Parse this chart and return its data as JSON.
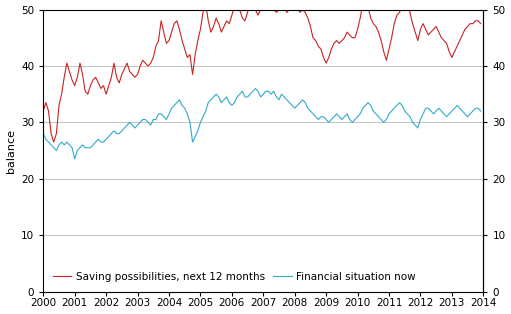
{
  "ylabel_left": "balance",
  "xlim": [
    2000.0,
    2014.0
  ],
  "ylim": [
    0,
    50
  ],
  "yticks": [
    0,
    10,
    20,
    30,
    40,
    50
  ],
  "xticks": [
    2000,
    2001,
    2002,
    2003,
    2004,
    2005,
    2006,
    2007,
    2008,
    2009,
    2010,
    2011,
    2012,
    2013,
    2014
  ],
  "line1_color": "#cc2222",
  "line2_color": "#33aacc",
  "line1_label": "Saving possibilities, next 12 months",
  "line2_label": "Financial situation now",
  "line1_data": [
    [
      2000.0,
      32.0
    ],
    [
      2000.083,
      33.5
    ],
    [
      2000.167,
      32.0
    ],
    [
      2000.25,
      28.0
    ],
    [
      2000.333,
      26.5
    ],
    [
      2000.417,
      28.0
    ],
    [
      2000.5,
      33.0
    ],
    [
      2000.583,
      35.0
    ],
    [
      2000.667,
      38.0
    ],
    [
      2000.75,
      40.5
    ],
    [
      2000.833,
      39.0
    ],
    [
      2000.917,
      37.5
    ],
    [
      2001.0,
      36.5
    ],
    [
      2001.083,
      38.0
    ],
    [
      2001.167,
      40.5
    ],
    [
      2001.25,
      38.5
    ],
    [
      2001.333,
      35.5
    ],
    [
      2001.417,
      35.0
    ],
    [
      2001.5,
      36.5
    ],
    [
      2001.583,
      37.5
    ],
    [
      2001.667,
      38.0
    ],
    [
      2001.75,
      37.0
    ],
    [
      2001.833,
      36.0
    ],
    [
      2001.917,
      36.5
    ],
    [
      2002.0,
      35.0
    ],
    [
      2002.083,
      36.5
    ],
    [
      2002.167,
      38.0
    ],
    [
      2002.25,
      40.5
    ],
    [
      2002.333,
      38.0
    ],
    [
      2002.417,
      37.0
    ],
    [
      2002.5,
      38.5
    ],
    [
      2002.583,
      39.5
    ],
    [
      2002.667,
      40.5
    ],
    [
      2002.75,
      39.0
    ],
    [
      2002.833,
      38.5
    ],
    [
      2002.917,
      38.0
    ],
    [
      2003.0,
      38.5
    ],
    [
      2003.083,
      40.0
    ],
    [
      2003.167,
      41.0
    ],
    [
      2003.25,
      40.5
    ],
    [
      2003.333,
      40.0
    ],
    [
      2003.417,
      40.5
    ],
    [
      2003.5,
      41.5
    ],
    [
      2003.583,
      43.5
    ],
    [
      2003.667,
      44.5
    ],
    [
      2003.75,
      48.0
    ],
    [
      2003.833,
      46.0
    ],
    [
      2003.917,
      44.0
    ],
    [
      2004.0,
      44.5
    ],
    [
      2004.083,
      46.0
    ],
    [
      2004.167,
      47.5
    ],
    [
      2004.25,
      48.0
    ],
    [
      2004.333,
      46.5
    ],
    [
      2004.417,
      44.5
    ],
    [
      2004.5,
      43.0
    ],
    [
      2004.583,
      41.5
    ],
    [
      2004.667,
      42.0
    ],
    [
      2004.75,
      38.5
    ],
    [
      2004.833,
      42.0
    ],
    [
      2004.917,
      44.5
    ],
    [
      2005.0,
      46.5
    ],
    [
      2005.083,
      49.5
    ],
    [
      2005.167,
      51.0
    ],
    [
      2005.25,
      48.0
    ],
    [
      2005.333,
      46.0
    ],
    [
      2005.417,
      47.0
    ],
    [
      2005.5,
      48.5
    ],
    [
      2005.583,
      47.5
    ],
    [
      2005.667,
      46.0
    ],
    [
      2005.75,
      47.0
    ],
    [
      2005.833,
      48.0
    ],
    [
      2005.917,
      47.5
    ],
    [
      2006.0,
      49.0
    ],
    [
      2006.083,
      50.5
    ],
    [
      2006.167,
      51.5
    ],
    [
      2006.25,
      50.0
    ],
    [
      2006.333,
      48.5
    ],
    [
      2006.417,
      48.0
    ],
    [
      2006.5,
      49.5
    ],
    [
      2006.583,
      51.5
    ],
    [
      2006.667,
      52.0
    ],
    [
      2006.75,
      50.0
    ],
    [
      2006.833,
      49.0
    ],
    [
      2006.917,
      50.0
    ],
    [
      2007.0,
      51.5
    ],
    [
      2007.083,
      52.5
    ],
    [
      2007.167,
      51.5
    ],
    [
      2007.25,
      50.5
    ],
    [
      2007.333,
      50.0
    ],
    [
      2007.417,
      49.5
    ],
    [
      2007.5,
      50.0
    ],
    [
      2007.583,
      50.5
    ],
    [
      2007.667,
      50.5
    ],
    [
      2007.75,
      49.5
    ],
    [
      2007.833,
      50.0
    ],
    [
      2007.917,
      50.0
    ],
    [
      2008.0,
      50.5
    ],
    [
      2008.083,
      50.5
    ],
    [
      2008.167,
      49.5
    ],
    [
      2008.25,
      50.0
    ],
    [
      2008.333,
      49.5
    ],
    [
      2008.417,
      48.5
    ],
    [
      2008.5,
      47.0
    ],
    [
      2008.583,
      45.0
    ],
    [
      2008.667,
      44.5
    ],
    [
      2008.75,
      43.5
    ],
    [
      2008.833,
      43.0
    ],
    [
      2008.917,
      41.5
    ],
    [
      2009.0,
      40.5
    ],
    [
      2009.083,
      41.5
    ],
    [
      2009.167,
      43.0
    ],
    [
      2009.25,
      44.0
    ],
    [
      2009.333,
      44.5
    ],
    [
      2009.417,
      44.0
    ],
    [
      2009.5,
      44.5
    ],
    [
      2009.583,
      45.0
    ],
    [
      2009.667,
      46.0
    ],
    [
      2009.75,
      45.5
    ],
    [
      2009.833,
      45.0
    ],
    [
      2009.917,
      45.0
    ],
    [
      2010.0,
      46.5
    ],
    [
      2010.083,
      48.5
    ],
    [
      2010.167,
      51.0
    ],
    [
      2010.25,
      52.0
    ],
    [
      2010.333,
      50.5
    ],
    [
      2010.417,
      48.5
    ],
    [
      2010.5,
      47.5
    ],
    [
      2010.583,
      47.0
    ],
    [
      2010.667,
      46.0
    ],
    [
      2010.75,
      44.5
    ],
    [
      2010.833,
      42.5
    ],
    [
      2010.917,
      41.0
    ],
    [
      2011.0,
      43.0
    ],
    [
      2011.083,
      45.0
    ],
    [
      2011.167,
      47.5
    ],
    [
      2011.25,
      49.0
    ],
    [
      2011.333,
      49.5
    ],
    [
      2011.417,
      50.5
    ],
    [
      2011.5,
      52.0
    ],
    [
      2011.583,
      51.5
    ],
    [
      2011.667,
      49.5
    ],
    [
      2011.75,
      47.5
    ],
    [
      2011.833,
      46.0
    ],
    [
      2011.917,
      44.5
    ],
    [
      2012.0,
      46.5
    ],
    [
      2012.083,
      47.5
    ],
    [
      2012.167,
      46.5
    ],
    [
      2012.25,
      45.5
    ],
    [
      2012.333,
      46.0
    ],
    [
      2012.417,
      46.5
    ],
    [
      2012.5,
      47.0
    ],
    [
      2012.583,
      46.0
    ],
    [
      2012.667,
      45.0
    ],
    [
      2012.75,
      44.5
    ],
    [
      2012.833,
      44.0
    ],
    [
      2012.917,
      42.5
    ],
    [
      2013.0,
      41.5
    ],
    [
      2013.083,
      42.5
    ],
    [
      2013.167,
      43.5
    ],
    [
      2013.25,
      44.5
    ],
    [
      2013.333,
      45.5
    ],
    [
      2013.417,
      46.5
    ],
    [
      2013.5,
      47.0
    ],
    [
      2013.583,
      47.5
    ],
    [
      2013.667,
      47.5
    ],
    [
      2013.75,
      48.0
    ],
    [
      2013.833,
      48.0
    ],
    [
      2013.917,
      47.5
    ]
  ],
  "line2_data": [
    [
      2000.0,
      28.0
    ],
    [
      2000.083,
      27.0
    ],
    [
      2000.167,
      26.5
    ],
    [
      2000.25,
      26.0
    ],
    [
      2000.333,
      25.5
    ],
    [
      2000.417,
      25.0
    ],
    [
      2000.5,
      26.0
    ],
    [
      2000.583,
      26.5
    ],
    [
      2000.667,
      26.0
    ],
    [
      2000.75,
      26.5
    ],
    [
      2000.833,
      26.0
    ],
    [
      2000.917,
      25.5
    ],
    [
      2001.0,
      23.5
    ],
    [
      2001.083,
      25.0
    ],
    [
      2001.167,
      25.5
    ],
    [
      2001.25,
      26.0
    ],
    [
      2001.333,
      25.5
    ],
    [
      2001.417,
      25.5
    ],
    [
      2001.5,
      25.5
    ],
    [
      2001.583,
      26.0
    ],
    [
      2001.667,
      26.5
    ],
    [
      2001.75,
      27.0
    ],
    [
      2001.833,
      26.5
    ],
    [
      2001.917,
      26.5
    ],
    [
      2002.0,
      27.0
    ],
    [
      2002.083,
      27.5
    ],
    [
      2002.167,
      28.0
    ],
    [
      2002.25,
      28.5
    ],
    [
      2002.333,
      28.0
    ],
    [
      2002.417,
      28.0
    ],
    [
      2002.5,
      28.5
    ],
    [
      2002.583,
      29.0
    ],
    [
      2002.667,
      29.5
    ],
    [
      2002.75,
      30.0
    ],
    [
      2002.833,
      29.5
    ],
    [
      2002.917,
      29.0
    ],
    [
      2003.0,
      29.5
    ],
    [
      2003.083,
      30.0
    ],
    [
      2003.167,
      30.5
    ],
    [
      2003.25,
      30.5
    ],
    [
      2003.333,
      30.0
    ],
    [
      2003.417,
      29.5
    ],
    [
      2003.5,
      30.5
    ],
    [
      2003.583,
      30.5
    ],
    [
      2003.667,
      31.5
    ],
    [
      2003.75,
      31.5
    ],
    [
      2003.833,
      31.0
    ],
    [
      2003.917,
      30.5
    ],
    [
      2004.0,
      31.5
    ],
    [
      2004.083,
      32.5
    ],
    [
      2004.167,
      33.0
    ],
    [
      2004.25,
      33.5
    ],
    [
      2004.333,
      34.0
    ],
    [
      2004.417,
      33.0
    ],
    [
      2004.5,
      32.5
    ],
    [
      2004.583,
      31.5
    ],
    [
      2004.667,
      30.0
    ],
    [
      2004.75,
      26.5
    ],
    [
      2004.833,
      27.5
    ],
    [
      2004.917,
      28.5
    ],
    [
      2005.0,
      30.0
    ],
    [
      2005.083,
      31.0
    ],
    [
      2005.167,
      32.0
    ],
    [
      2005.25,
      33.5
    ],
    [
      2005.333,
      34.0
    ],
    [
      2005.417,
      34.5
    ],
    [
      2005.5,
      35.0
    ],
    [
      2005.583,
      34.5
    ],
    [
      2005.667,
      33.5
    ],
    [
      2005.75,
      34.0
    ],
    [
      2005.833,
      34.5
    ],
    [
      2005.917,
      33.5
    ],
    [
      2006.0,
      33.0
    ],
    [
      2006.083,
      33.5
    ],
    [
      2006.167,
      34.5
    ],
    [
      2006.25,
      35.0
    ],
    [
      2006.333,
      35.5
    ],
    [
      2006.417,
      34.5
    ],
    [
      2006.5,
      34.5
    ],
    [
      2006.583,
      35.0
    ],
    [
      2006.667,
      35.5
    ],
    [
      2006.75,
      36.0
    ],
    [
      2006.833,
      35.5
    ],
    [
      2006.917,
      34.5
    ],
    [
      2007.0,
      35.0
    ],
    [
      2007.083,
      35.5
    ],
    [
      2007.167,
      35.5
    ],
    [
      2007.25,
      35.0
    ],
    [
      2007.333,
      35.5
    ],
    [
      2007.417,
      34.5
    ],
    [
      2007.5,
      34.0
    ],
    [
      2007.583,
      35.0
    ],
    [
      2007.667,
      34.5
    ],
    [
      2007.75,
      34.0
    ],
    [
      2007.833,
      33.5
    ],
    [
      2007.917,
      33.0
    ],
    [
      2008.0,
      32.5
    ],
    [
      2008.083,
      33.0
    ],
    [
      2008.167,
      33.5
    ],
    [
      2008.25,
      34.0
    ],
    [
      2008.333,
      33.5
    ],
    [
      2008.417,
      32.5
    ],
    [
      2008.5,
      32.0
    ],
    [
      2008.583,
      31.5
    ],
    [
      2008.667,
      31.0
    ],
    [
      2008.75,
      30.5
    ],
    [
      2008.833,
      31.0
    ],
    [
      2008.917,
      31.0
    ],
    [
      2009.0,
      30.5
    ],
    [
      2009.083,
      30.0
    ],
    [
      2009.167,
      30.5
    ],
    [
      2009.25,
      31.0
    ],
    [
      2009.333,
      31.5
    ],
    [
      2009.417,
      31.0
    ],
    [
      2009.5,
      30.5
    ],
    [
      2009.583,
      31.0
    ],
    [
      2009.667,
      31.5
    ],
    [
      2009.75,
      30.5
    ],
    [
      2009.833,
      30.0
    ],
    [
      2009.917,
      30.5
    ],
    [
      2010.0,
      31.0
    ],
    [
      2010.083,
      31.5
    ],
    [
      2010.167,
      32.5
    ],
    [
      2010.25,
      33.0
    ],
    [
      2010.333,
      33.5
    ],
    [
      2010.417,
      33.0
    ],
    [
      2010.5,
      32.0
    ],
    [
      2010.583,
      31.5
    ],
    [
      2010.667,
      31.0
    ],
    [
      2010.75,
      30.5
    ],
    [
      2010.833,
      30.0
    ],
    [
      2010.917,
      30.5
    ],
    [
      2011.0,
      31.5
    ],
    [
      2011.083,
      32.0
    ],
    [
      2011.167,
      32.5
    ],
    [
      2011.25,
      33.0
    ],
    [
      2011.333,
      33.5
    ],
    [
      2011.417,
      33.0
    ],
    [
      2011.5,
      32.0
    ],
    [
      2011.583,
      31.5
    ],
    [
      2011.667,
      31.0
    ],
    [
      2011.75,
      30.0
    ],
    [
      2011.833,
      29.5
    ],
    [
      2011.917,
      29.0
    ],
    [
      2012.0,
      30.5
    ],
    [
      2012.083,
      31.5
    ],
    [
      2012.167,
      32.5
    ],
    [
      2012.25,
      32.5
    ],
    [
      2012.333,
      32.0
    ],
    [
      2012.417,
      31.5
    ],
    [
      2012.5,
      32.0
    ],
    [
      2012.583,
      32.5
    ],
    [
      2012.667,
      32.0
    ],
    [
      2012.75,
      31.5
    ],
    [
      2012.833,
      31.0
    ],
    [
      2012.917,
      31.5
    ],
    [
      2013.0,
      32.0
    ],
    [
      2013.083,
      32.5
    ],
    [
      2013.167,
      33.0
    ],
    [
      2013.25,
      32.5
    ],
    [
      2013.333,
      32.0
    ],
    [
      2013.417,
      31.5
    ],
    [
      2013.5,
      31.0
    ],
    [
      2013.583,
      31.5
    ],
    [
      2013.667,
      32.0
    ],
    [
      2013.75,
      32.5
    ],
    [
      2013.833,
      32.5
    ],
    [
      2013.917,
      32.0
    ]
  ],
  "bg_color": "#ffffff",
  "grid_color": "#aaaaaa",
  "legend_fontsize": 7.5,
  "axis_fontsize": 8,
  "tick_fontsize": 7.5,
  "linewidth": 0.8
}
